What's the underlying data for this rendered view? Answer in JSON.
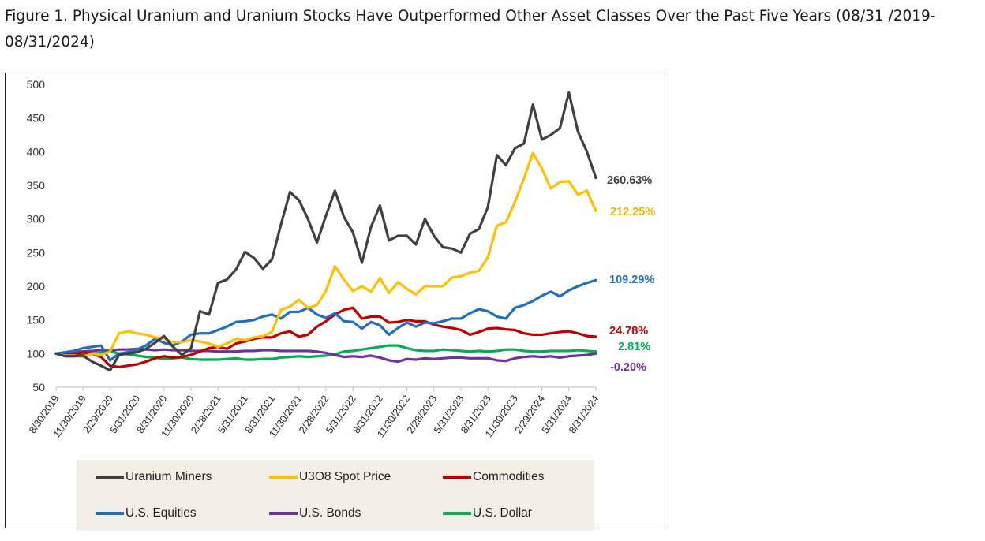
{
  "page": {
    "title": "Figure 1. Physical Uranium and Uranium Stocks Have Outperformed Other Asset Classes Over the Past Five Years (08/31 /2019-08/31/2024)"
  },
  "chart_data": {
    "type": "line",
    "ylim": [
      50,
      500
    ],
    "y_ticks": [
      "500",
      "450",
      "400",
      "350",
      "300",
      "250",
      "200",
      "150",
      "100",
      "50"
    ],
    "x_tick_labels": [
      "8/30/2019",
      "11/30/2019",
      "2/29/2020",
      "5/31/2020",
      "8/31/2020",
      "11/30/2020",
      "2/28/2021",
      "5/31/2021",
      "8/31/2021",
      "11/30/2021",
      "2/28/2022",
      "5/31/2022",
      "8/31/2022",
      "11/30/2022",
      "2/28/2023",
      "5/31/2023",
      "8/31/2023",
      "11/30/2023",
      "2/29/2024",
      "5/31/2024",
      "8/31/2024"
    ],
    "grid": false,
    "legend_position": "bottom",
    "series": [
      {
        "name": "Uranium Miners",
        "color": "#404040",
        "end_label": "260.63%",
        "values": [
          100,
          96,
          96,
          97,
          88,
          82,
          75,
          98,
          100,
          102,
          107,
          116,
          126,
          110,
          98,
          108,
          163,
          158,
          205,
          210,
          225,
          251,
          242,
          226,
          240,
          292,
          340,
          328,
          300,
          265,
          305,
          342,
          303,
          280,
          235,
          288,
          320,
          268,
          275,
          275,
          262,
          300,
          275,
          258,
          256,
          250,
          278,
          285,
          318,
          395,
          380,
          405,
          412,
          470,
          418,
          425,
          435,
          488,
          430,
          400,
          361
        ]
      },
      {
        "name": "U3O8 Spot Price",
        "color": "#ffc000",
        "end_label": "212.25%",
        "values": [
          100,
          97,
          97,
          95,
          100,
          98,
          103,
          130,
          133,
          130,
          128,
          124,
          122,
          117,
          117,
          120,
          118,
          115,
          110,
          115,
          122,
          120,
          124,
          126,
          132,
          165,
          170,
          180,
          168,
          172,
          193,
          230,
          210,
          193,
          200,
          192,
          212,
          190,
          206,
          196,
          188,
          200,
          200,
          200,
          213,
          215,
          220,
          223,
          243,
          290,
          295,
          325,
          360,
          398,
          375,
          345,
          355,
          356,
          336,
          342,
          312
        ]
      },
      {
        "name": "Commodities",
        "color": "#c00000",
        "end_label": "24.78%",
        "values": [
          100,
          98,
          99,
          102,
          100,
          95,
          82,
          80,
          82,
          84,
          88,
          93,
          96,
          94,
          95,
          98,
          103,
          108,
          110,
          107,
          115,
          118,
          122,
          124,
          124,
          130,
          133,
          125,
          128,
          140,
          148,
          158,
          165,
          168,
          152,
          155,
          155,
          146,
          147,
          150,
          148,
          148,
          143,
          140,
          138,
          135,
          128,
          132,
          137,
          138,
          136,
          135,
          130,
          128,
          128,
          130,
          132,
          133,
          130,
          126,
          125
        ]
      },
      {
        "name": "U.S. Equities",
        "color": "#1f6fbf",
        "end_label": "109.29%",
        "values": [
          100,
          102,
          104,
          108,
          110,
          112,
          90,
          100,
          102,
          106,
          112,
          122,
          116,
          112,
          118,
          128,
          130,
          130,
          135,
          140,
          147,
          148,
          150,
          155,
          158,
          152,
          162,
          162,
          168,
          158,
          153,
          160,
          148,
          147,
          137,
          147,
          142,
          128,
          138,
          146,
          140,
          146,
          145,
          148,
          152,
          152,
          160,
          166,
          163,
          155,
          152,
          168,
          172,
          178,
          186,
          192,
          185,
          194,
          200,
          205,
          209
        ]
      },
      {
        "name": "U.S. Bonds",
        "color": "#7030a0",
        "end_label": "-0.20%",
        "values": [
          100,
          101,
          102,
          103,
          104,
          105,
          104,
          106,
          106,
          107,
          106,
          105,
          106,
          105,
          105,
          104,
          104,
          104,
          103,
          103,
          103,
          104,
          104,
          105,
          105,
          104,
          104,
          104,
          104,
          103,
          101,
          98,
          95,
          96,
          95,
          97,
          94,
          90,
          88,
          92,
          91,
          93,
          92,
          93,
          94,
          94,
          93,
          93,
          93,
          90,
          89,
          93,
          95,
          96,
          95,
          96,
          94,
          96,
          97,
          98,
          100
        ]
      },
      {
        "name": "U.S. Dollar",
        "color": "#00b050",
        "end_label": "2.81%",
        "values": [
          100,
          99,
          100,
          99,
          100,
          101,
          103,
          100,
          99,
          97,
          95,
          94,
          92,
          93,
          94,
          92,
          91,
          91,
          91,
          92,
          93,
          91,
          91,
          92,
          92,
          94,
          95,
          96,
          95,
          96,
          97,
          99,
          103,
          104,
          106,
          108,
          110,
          112,
          112,
          108,
          105,
          104,
          104,
          106,
          105,
          104,
          103,
          104,
          103,
          104,
          106,
          106,
          104,
          103,
          103,
          104,
          104,
          104,
          105,
          104,
          103
        ]
      }
    ]
  }
}
